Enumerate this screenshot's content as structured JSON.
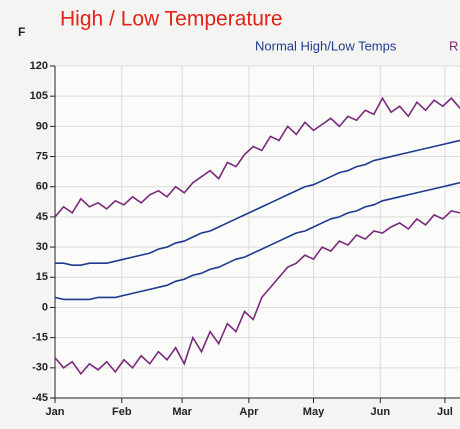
{
  "chart_data": {
    "type": "line",
    "title": "High / Low Temperature",
    "ylabel": "F",
    "legend": [
      {
        "label": "Normal High/Low Temps",
        "color": "#1f3b8f"
      },
      {
        "label": "R",
        "color": "#7a2a7c"
      }
    ],
    "x": [
      0,
      4,
      8,
      12,
      16,
      20,
      24,
      28,
      32,
      36,
      40,
      44,
      48,
      52,
      56,
      60,
      64,
      68,
      72,
      76,
      80,
      84,
      88,
      92,
      96,
      100,
      104,
      108,
      112,
      116,
      120,
      124,
      128,
      132,
      136,
      140,
      144,
      148,
      152,
      156,
      160,
      164,
      168,
      172,
      176,
      180,
      184,
      188
    ],
    "series": [
      {
        "color": "#1f3b8f",
        "values": [
          22,
          22,
          21,
          21,
          22,
          22,
          22,
          23,
          24,
          25,
          26,
          27,
          29,
          30,
          32,
          33,
          35,
          37,
          38,
          40,
          42,
          44,
          46,
          48,
          50,
          52,
          54,
          56,
          58,
          60,
          61,
          63,
          65,
          67,
          68,
          70,
          71,
          73,
          74,
          75,
          76,
          77,
          78,
          79,
          80,
          81,
          82,
          83
        ]
      },
      {
        "color": "#1f3b8f",
        "values": [
          5,
          4,
          4,
          4,
          4,
          5,
          5,
          5,
          6,
          7,
          8,
          9,
          10,
          11,
          13,
          14,
          16,
          17,
          19,
          20,
          22,
          24,
          25,
          27,
          29,
          31,
          33,
          35,
          37,
          38,
          40,
          42,
          44,
          45,
          47,
          48,
          50,
          51,
          53,
          54,
          55,
          56,
          57,
          58,
          59,
          60,
          61,
          62
        ]
      },
      {
        "color": "#7a2a7c",
        "values": [
          45,
          50,
          47,
          54,
          50,
          52,
          49,
          53,
          51,
          55,
          52,
          56,
          58,
          55,
          60,
          57,
          62,
          65,
          68,
          64,
          72,
          70,
          76,
          80,
          78,
          85,
          83,
          90,
          86,
          92,
          88,
          91,
          94,
          90,
          95,
          93,
          98,
          96,
          104,
          97,
          100,
          95,
          102,
          98,
          103,
          100,
          104,
          99
        ]
      },
      {
        "color": "#7a2a7c",
        "values": [
          -25,
          -30,
          -27,
          -33,
          -28,
          -31,
          -27,
          -32,
          -26,
          -30,
          -24,
          -28,
          -22,
          -26,
          -20,
          -28,
          -15,
          -22,
          -12,
          -18,
          -8,
          -12,
          -2,
          -6,
          5,
          10,
          15,
          20,
          22,
          26,
          24,
          30,
          28,
          33,
          31,
          36,
          34,
          38,
          37,
          40,
          42,
          39,
          44,
          41,
          46,
          44,
          48,
          47
        ]
      }
    ],
    "xlim": [
      0,
      188
    ],
    "xticks": [
      {
        "value": 0,
        "label": "Jan"
      },
      {
        "value": 31,
        "label": "Feb"
      },
      {
        "value": 59,
        "label": "Mar"
      },
      {
        "value": 90,
        "label": "Apr"
      },
      {
        "value": 120,
        "label": "May"
      },
      {
        "value": 151,
        "label": "Jun"
      },
      {
        "value": 181,
        "label": "Jul"
      }
    ],
    "ylim": [
      -45,
      120
    ],
    "yticks": [
      -45,
      -30,
      -15,
      0,
      15,
      30,
      45,
      60,
      75,
      90,
      105,
      120
    ],
    "grid": true
  }
}
